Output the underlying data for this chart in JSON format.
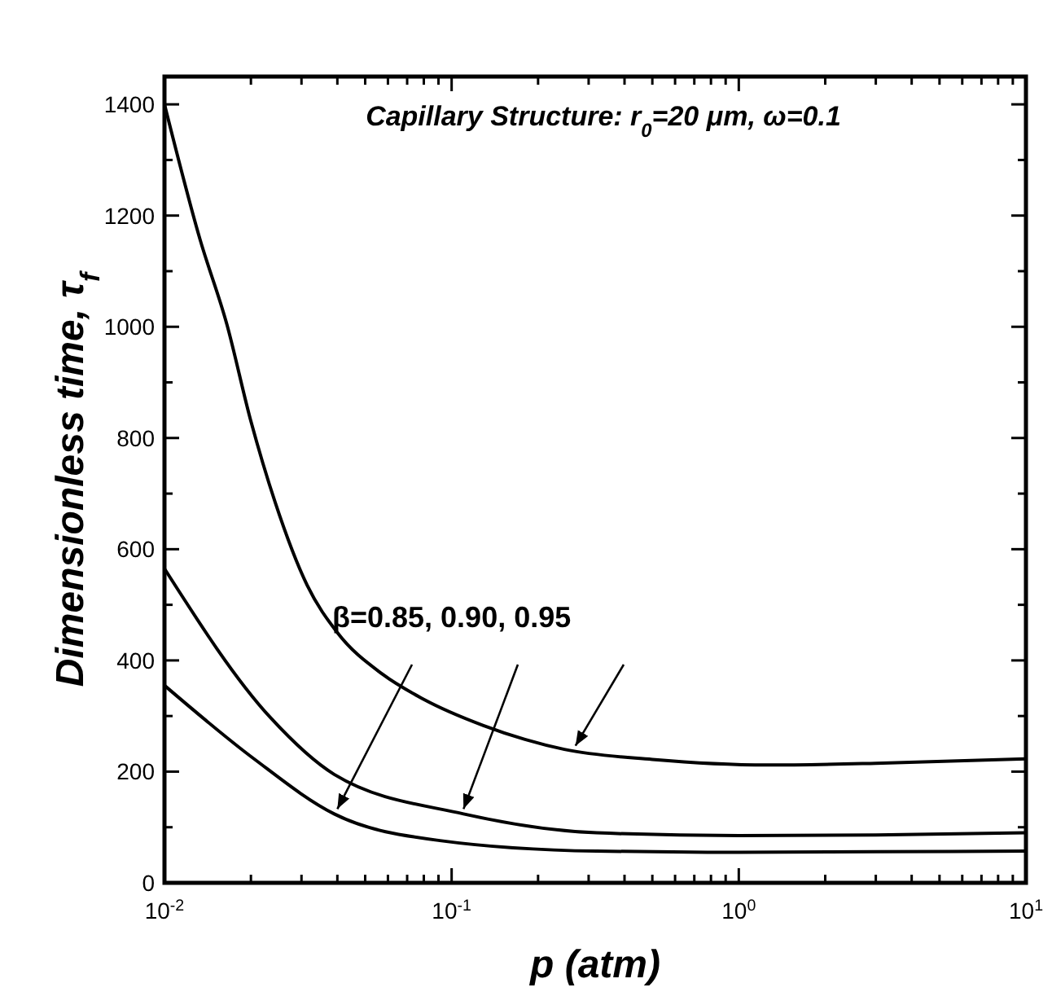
{
  "chart_data": {
    "type": "line",
    "title": "Capillary Structure: r$_{0}$=20 μm, ω=0.1",
    "xlabel": "p (atm)",
    "ylabel": "Dimensionless time, τ$_{f}$",
    "log": "x",
    "grid": false,
    "marker": "none",
    "line_style": "solid",
    "xlim": [
      0.01,
      10
    ],
    "ylim": [
      0,
      1450
    ],
    "xticks": [
      {
        "value": 0.01,
        "label": "10$^{-2}$"
      },
      {
        "value": 0.02,
        "label": null
      },
      {
        "value": 0.03,
        "label": null
      },
      {
        "value": 0.04,
        "label": null
      },
      {
        "value": 0.05,
        "label": null
      },
      {
        "value": 0.06,
        "label": null
      },
      {
        "value": 0.07,
        "label": null
      },
      {
        "value": 0.08,
        "label": null
      },
      {
        "value": 0.09,
        "label": null
      },
      {
        "value": 0.1,
        "label": "10$^{-1}$"
      },
      {
        "value": 0.2,
        "label": null
      },
      {
        "value": 0.3,
        "label": null
      },
      {
        "value": 0.4,
        "label": null
      },
      {
        "value": 0.5,
        "label": null
      },
      {
        "value": 0.6,
        "label": null
      },
      {
        "value": 0.7,
        "label": null
      },
      {
        "value": 0.8,
        "label": null
      },
      {
        "value": 0.9,
        "label": null
      },
      {
        "value": 1,
        "label": "10$^{0}$"
      },
      {
        "value": 2,
        "label": null
      },
      {
        "value": 3,
        "label": null
      },
      {
        "value": 4,
        "label": null
      },
      {
        "value": 5,
        "label": null
      },
      {
        "value": 6,
        "label": null
      },
      {
        "value": 7,
        "label": null
      },
      {
        "value": 8,
        "label": null
      },
      {
        "value": 9,
        "label": null
      },
      {
        "value": 10,
        "label": "10$^{1}$"
      }
    ],
    "yticks": [
      0,
      {
        "value": 100,
        "label": null
      },
      200,
      {
        "value": 300,
        "label": null
      },
      400,
      {
        "value": 500,
        "label": null
      },
      600,
      {
        "value": 700,
        "label": null
      },
      800,
      {
        "value": 900,
        "label": null
      },
      1000,
      {
        "value": 1100,
        "label": null
      },
      1200,
      {
        "value": 1300,
        "label": null
      },
      1400
    ],
    "annotations": [
      {
        "text": "β=0.85, 0.90, 0.95",
        "x": 0.04,
        "y": 124
      }
    ],
    "series": [
      {
        "color": "#000000",
        "x": [
          0.01,
          0.0133,
          0.0165,
          0.02,
          0.022,
          0.0243,
          0.0314,
          0.04,
          0.0575,
          0.08,
          0.129,
          0.18,
          0.247,
          0.5,
          1.26,
          3,
          10
        ],
        "values": [
          1400,
          1157,
          1004,
          830,
          755,
          684,
          535,
          450,
          375,
          330,
          283,
          258,
          240,
          222,
          212,
          215,
          223
        ]
      },
      {
        "color": "#000000",
        "x": [
          0.01,
          0.0234,
          0.039,
          0.11,
          0.32,
          1,
          3,
          10
        ],
        "values": [
          565,
          297,
          195,
          124,
          90,
          85,
          86,
          90
        ]
      },
      {
        "color": "#000000",
        "x": [
          0.01,
          0.0205,
          0.039,
          0.091,
          0.32,
          1,
          3,
          10
        ],
        "values": [
          355,
          223,
          124,
          76,
          57,
          55,
          56,
          57
        ]
      }
    ]
  }
}
